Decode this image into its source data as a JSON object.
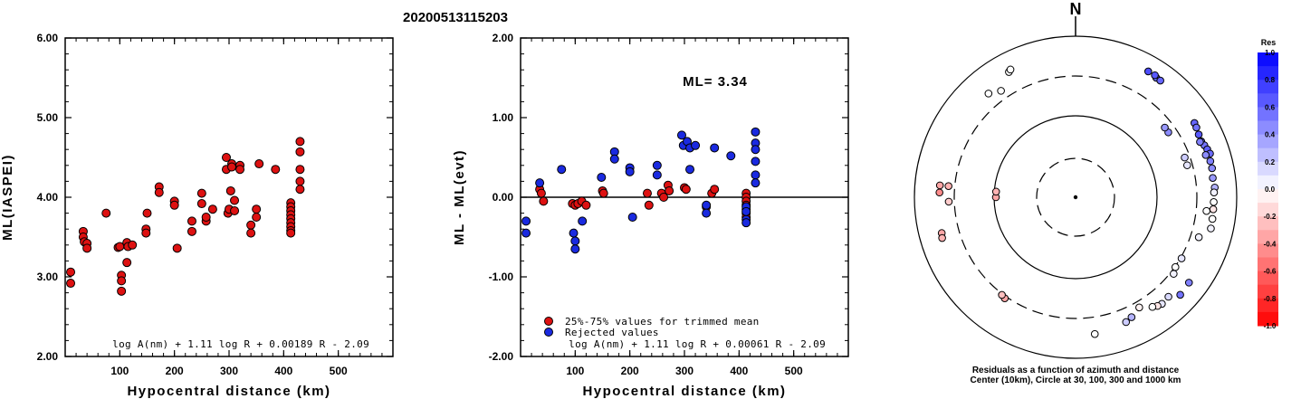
{
  "figure_title": "20200513115203",
  "chart_data": [
    {
      "type": "scatter",
      "name": "ml-vs-distance",
      "xlabel": "Hypocentral distance (km)",
      "ylabel": "ML(IASPEI)",
      "xlim": [
        0,
        600
      ],
      "ylim": [
        2.0,
        6.0
      ],
      "xticks": [
        "100",
        "200",
        "300",
        "400",
        "500"
      ],
      "yticks": [
        "2.00",
        "3.00",
        "4.00",
        "5.00",
        "6.00"
      ],
      "formula": "log A(nm) + 1.11 log R + 0.00189 R - 2.09",
      "marker_color": "#dd1111",
      "points": [
        [
          10,
          3.06
        ],
        [
          10,
          2.92
        ],
        [
          33,
          3.57
        ],
        [
          33,
          3.5
        ],
        [
          35,
          3.44
        ],
        [
          40,
          3.42
        ],
        [
          40,
          3.36
        ],
        [
          75,
          3.8
        ],
        [
          97,
          3.37
        ],
        [
          100,
          3.38
        ],
        [
          103,
          3.02
        ],
        [
          103,
          2.95
        ],
        [
          103,
          2.82
        ],
        [
          113,
          3.43
        ],
        [
          113,
          3.18
        ],
        [
          115,
          3.38
        ],
        [
          123,
          3.4
        ],
        [
          148,
          3.6
        ],
        [
          148,
          3.55
        ],
        [
          150,
          3.8
        ],
        [
          172,
          4.13
        ],
        [
          172,
          4.06
        ],
        [
          200,
          3.95
        ],
        [
          200,
          3.9
        ],
        [
          205,
          3.36
        ],
        [
          232,
          3.57
        ],
        [
          232,
          3.7
        ],
        [
          250,
          3.92
        ],
        [
          250,
          4.05
        ],
        [
          258,
          3.7
        ],
        [
          258,
          3.75
        ],
        [
          270,
          3.85
        ],
        [
          295,
          4.5
        ],
        [
          295,
          4.35
        ],
        [
          298,
          3.8
        ],
        [
          300,
          3.85
        ],
        [
          303,
          4.08
        ],
        [
          305,
          4.42
        ],
        [
          305,
          4.38
        ],
        [
          310,
          3.96
        ],
        [
          310,
          3.83
        ],
        [
          320,
          4.4
        ],
        [
          320,
          4.35
        ],
        [
          340,
          3.65
        ],
        [
          340,
          3.55
        ],
        [
          350,
          3.85
        ],
        [
          350,
          3.75
        ],
        [
          355,
          4.42
        ],
        [
          385,
          4.35
        ],
        [
          413,
          3.93
        ],
        [
          413,
          3.88
        ],
        [
          413,
          3.83
        ],
        [
          413,
          3.78
        ],
        [
          413,
          3.73
        ],
        [
          413,
          3.68
        ],
        [
          413,
          3.63
        ],
        [
          413,
          3.58
        ],
        [
          413,
          3.55
        ],
        [
          430,
          4.7
        ],
        [
          430,
          4.57
        ],
        [
          430,
          4.35
        ],
        [
          430,
          4.2
        ],
        [
          430,
          4.1
        ]
      ]
    },
    {
      "type": "scatter",
      "name": "residual-vs-distance",
      "xlabel": "Hypocentral distance (km)",
      "ylabel": "ML - ML(evt)",
      "xlim": [
        0,
        600
      ],
      "ylim": [
        -2.0,
        2.0
      ],
      "xticks": [
        "100",
        "200",
        "300",
        "400",
        "500"
      ],
      "yticks": [
        "-2.00",
        "-1.00",
        "0.00",
        "1.00",
        "2.00"
      ],
      "ml_label": "ML= 3.34",
      "formula": "log A(nm) + 1.11 log R + 0.00061 R - 2.09",
      "legend": [
        "25%-75% values for trimmed mean",
        "Rejected values"
      ],
      "series": [
        {
          "name": "25%-75% values for trimmed mean",
          "color": "#dd1111",
          "points": [
            [
              35,
              0.1
            ],
            [
              38,
              0.05
            ],
            [
              42,
              -0.05
            ],
            [
              95,
              -0.08
            ],
            [
              100,
              -0.1
            ],
            [
              105,
              -0.08
            ],
            [
              112,
              -0.05
            ],
            [
              120,
              -0.1
            ],
            [
              150,
              0.08
            ],
            [
              152,
              0.05
            ],
            [
              232,
              0.05
            ],
            [
              235,
              -0.1
            ],
            [
              258,
              0.05
            ],
            [
              262,
              0.0
            ],
            [
              270,
              0.15
            ],
            [
              272,
              0.08
            ],
            [
              300,
              0.12
            ],
            [
              303,
              0.1
            ],
            [
              340,
              -0.12
            ],
            [
              350,
              0.05
            ],
            [
              355,
              0.1
            ],
            [
              413,
              0.05
            ],
            [
              413,
              0.0
            ],
            [
              413,
              -0.05
            ],
            [
              413,
              -0.1
            ],
            [
              413,
              -0.15
            ],
            [
              413,
              -0.2
            ],
            [
              413,
              -0.25
            ]
          ]
        },
        {
          "name": "Rejected values",
          "color": "#1a2ae0",
          "points": [
            [
              10,
              -0.3
            ],
            [
              10,
              -0.45
            ],
            [
              35,
              0.18
            ],
            [
              75,
              0.35
            ],
            [
              97,
              -0.45
            ],
            [
              100,
              -0.55
            ],
            [
              100,
              -0.65
            ],
            [
              113,
              -0.3
            ],
            [
              148,
              0.25
            ],
            [
              172,
              0.57
            ],
            [
              172,
              0.48
            ],
            [
              200,
              0.37
            ],
            [
              200,
              0.32
            ],
            [
              205,
              -0.25
            ],
            [
              250,
              0.4
            ],
            [
              250,
              0.28
            ],
            [
              298,
              0.65
            ],
            [
              295,
              0.78
            ],
            [
              305,
              0.7
            ],
            [
              310,
              0.62
            ],
            [
              310,
              0.35
            ],
            [
              320,
              0.65
            ],
            [
              340,
              -0.1
            ],
            [
              340,
              -0.2
            ],
            [
              355,
              0.62
            ],
            [
              385,
              0.52
            ],
            [
              413,
              -0.28
            ],
            [
              413,
              -0.32
            ],
            [
              413,
              -0.12
            ],
            [
              413,
              -0.18
            ],
            [
              430,
              0.82
            ],
            [
              430,
              0.68
            ],
            [
              430,
              0.6
            ],
            [
              430,
              0.45
            ],
            [
              430,
              0.28
            ],
            [
              430,
              0.18
            ]
          ]
        }
      ]
    },
    {
      "type": "polar-scatter",
      "name": "azimuth-residual-map",
      "north_label": "N",
      "caption_line1": "Residuals as a function of azimuth and distance",
      "caption_line2": "Center (10km), Circle at 30, 100, 300 and 1000 km",
      "colorbar_title": "Res",
      "colorbar_ticks": [
        "1.0",
        "0.8",
        "0.6",
        "0.4",
        "0.2",
        "0.0",
        "-0.2",
        "-0.4",
        "-0.6",
        "-0.8",
        "-1.0"
      ],
      "ring_distances_km": [
        30,
        100,
        300,
        1000
      ],
      "stations": [
        {
          "az": 332,
          "dist": 560,
          "res": 0.0
        },
        {
          "az": 333,
          "dist": 585,
          "res": 0.0
        },
        {
          "az": 320,
          "dist": 460,
          "res": 0.0
        },
        {
          "az": 325,
          "dist": 390,
          "res": 0.0
        },
        {
          "az": 34,
          "dist": 600,
          "res": 0.55
        },
        {
          "az": 36,
          "dist": 600,
          "res": 0.6
        },
        {
          "az": 30,
          "dist": 620,
          "res": 0.7
        },
        {
          "az": 33,
          "dist": 625,
          "res": 0.65
        },
        {
          "az": 58,
          "dist": 530,
          "res": 0.6
        },
        {
          "az": 60,
          "dist": 520,
          "res": 0.55
        },
        {
          "az": 63,
          "dist": 500,
          "res": 0.65
        },
        {
          "az": 66,
          "dist": 490,
          "res": 0.6
        },
        {
          "az": 68,
          "dist": 510,
          "res": 0.55
        },
        {
          "az": 70,
          "dist": 530,
          "res": 0.62
        },
        {
          "az": 72,
          "dist": 550,
          "res": 0.58
        },
        {
          "az": 66,
          "dist": 470,
          "res": 0.5
        },
        {
          "az": 72,
          "dist": 480,
          "res": 0.45
        },
        {
          "az": 75,
          "dist": 520,
          "res": 0.5
        },
        {
          "az": 78,
          "dist": 520,
          "res": 0.45
        },
        {
          "az": 82,
          "dist": 505,
          "res": 0.4
        },
        {
          "az": 86,
          "dist": 520,
          "res": 0.3
        },
        {
          "az": 88,
          "dist": 505,
          "res": 0.05
        },
        {
          "az": 92,
          "dist": 500,
          "res": 0.0
        },
        {
          "az": 95,
          "dist": 500,
          "res": -0.1
        },
        {
          "az": 99,
          "dist": 505,
          "res": 0.0
        },
        {
          "az": 103,
          "dist": 510,
          "res": 0.05
        },
        {
          "az": 96,
          "dist": 410,
          "res": 0.0
        },
        {
          "az": 55,
          "dist": 240,
          "res": 0.45
        },
        {
          "az": 52,
          "dist": 240,
          "res": 0.4
        },
        {
          "az": 70,
          "dist": 260,
          "res": 0.2
        },
        {
          "az": 74,
          "dist": 260,
          "res": 0.1
        },
        {
          "az": 108,
          "dist": 385,
          "res": 0.05
        },
        {
          "az": 120,
          "dist": 310,
          "res": 0.1
        },
        {
          "az": 125,
          "dist": 305,
          "res": 0.0
        },
        {
          "az": 128,
          "dist": 330,
          "res": 0.05
        },
        {
          "az": 137,
          "dist": 470,
          "res": 0.15
        },
        {
          "az": 141,
          "dist": 485,
          "res": 0.1
        },
        {
          "az": 143,
          "dist": 470,
          "res": -0.1
        },
        {
          "az": 145,
          "dist": 440,
          "res": 0.0
        },
        {
          "az": 150,
          "dist": 360,
          "res": -0.05
        },
        {
          "az": 155,
          "dist": 420,
          "res": 0.3
        },
        {
          "az": 158,
          "dist": 450,
          "res": 0.2
        },
        {
          "az": 172,
          "dist": 500,
          "res": 0.0
        },
        {
          "az": 127,
          "dist": 560,
          "res": 0.5
        },
        {
          "az": 133,
          "dist": 580,
          "res": 0.55
        },
        {
          "az": 215,
          "dist": 320,
          "res": -0.35
        },
        {
          "az": 217,
          "dist": 310,
          "res": -0.25
        },
        {
          "az": 275,
          "dist": 470,
          "res": -0.35
        },
        {
          "az": 272,
          "dist": 470,
          "res": -0.45
        },
        {
          "az": 255,
          "dist": 505,
          "res": -0.35
        },
        {
          "az": 253,
          "dist": 520,
          "res": -0.3
        },
        {
          "az": 268,
          "dist": 355,
          "res": -0.2
        },
        {
          "az": 275,
          "dist": 362,
          "res": -0.3
        },
        {
          "az": 270,
          "dist": 95,
          "res": -0.35
        },
        {
          "az": 274,
          "dist": 95,
          "res": -0.3
        }
      ]
    }
  ]
}
